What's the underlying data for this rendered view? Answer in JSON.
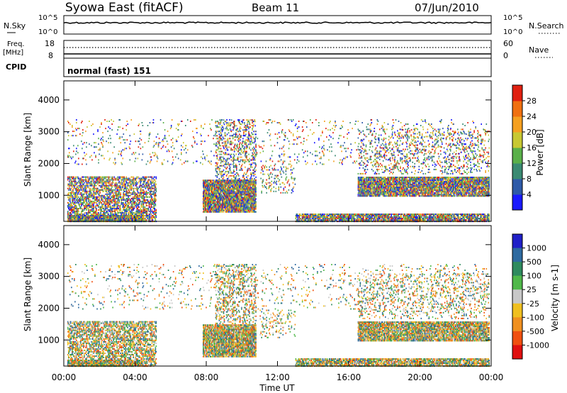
{
  "header": {
    "station": "Syowa East (fitACF)",
    "beam": "Beam 11",
    "date": "07/Jun/2010"
  },
  "top_panels": {
    "nsky_label": "N.Sky",
    "nsky_top": "10^5",
    "nsky_bottom": "10^0",
    "nsearch_label": "N.Search",
    "nsearch_top": "10^5",
    "nsearch_bottom": "10^0",
    "freq_label_1": "Freq.",
    "freq_label_2": "[MHz]",
    "freq_top": "18",
    "freq_bottom": "8",
    "nave_label": "Nave",
    "nave_top": "60",
    "nave_bottom": "0",
    "cpid_label": "CPID",
    "cpid_value": "normal (fast) 151"
  },
  "chart_data": [
    {
      "type": "heatmap",
      "panel": "power",
      "ylabel": "Slant Range [km]",
      "ylim": [
        180,
        4600
      ],
      "yticks": [
        "1000",
        "2000",
        "3000",
        "4000"
      ],
      "colorbar_label": "Power [dB]",
      "colorbar_ticks": [
        "4",
        "8",
        "12",
        "16",
        "20",
        "24",
        "28"
      ],
      "colors": [
        "#1a1aff",
        "#2e5aa8",
        "#3a8a72",
        "#5ab04a",
        "#c8c832",
        "#f5a020",
        "#f07010",
        "#e02010"
      ]
    },
    {
      "type": "heatmap",
      "panel": "velocity",
      "ylabel": "Slant Range [km]",
      "ylim": [
        180,
        4600
      ],
      "yticks": [
        "1000",
        "2000",
        "3000",
        "4000"
      ],
      "colorbar_label": "Velocity [m s-1]",
      "colorbar_ticks": [
        "1000",
        "500",
        "100",
        "25",
        "-25",
        "-100",
        "-500",
        "-1000"
      ],
      "colors": [
        "#2020c8",
        "#2e6aa0",
        "#2e8a5e",
        "#50b84a",
        "#c8c8c8",
        "#f0c020",
        "#f09020",
        "#f05010",
        "#e01010"
      ]
    }
  ],
  "xaxis": {
    "ticks": [
      "00:00",
      "04:00",
      "08:00",
      "12:00",
      "16:00",
      "20:00",
      "00:00"
    ],
    "label": "Time UT"
  }
}
